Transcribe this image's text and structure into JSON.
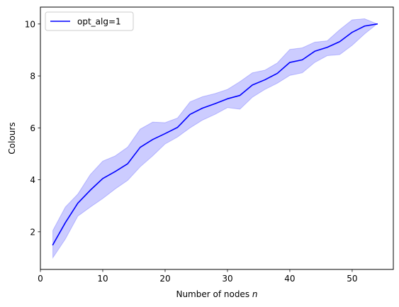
{
  "chart_data": {
    "type": "line",
    "title": "",
    "xlabel": "Number of nodes",
    "xlabel_var": "n",
    "ylabel": "Colours",
    "xlim": [
      0,
      56.6
    ],
    "ylim": [
      0.55,
      10.65
    ],
    "x_ticks": [
      0,
      10,
      20,
      30,
      40,
      50
    ],
    "y_ticks": [
      2,
      4,
      6,
      8,
      10
    ],
    "grid": false,
    "legend_position": "top-left",
    "series": [
      {
        "name": "opt_alg=1",
        "color": "#0000ff",
        "band_color": "#0000ff",
        "x": [
          2,
          4,
          6,
          8,
          10,
          12,
          14,
          16,
          18,
          20,
          22,
          24,
          26,
          28,
          30,
          32,
          34,
          36,
          38,
          40,
          42,
          44,
          46,
          48,
          50,
          52,
          54
        ],
        "mean": [
          1.5,
          2.35,
          3.1,
          3.6,
          4.05,
          4.32,
          4.62,
          5.25,
          5.55,
          5.78,
          6.02,
          6.52,
          6.76,
          6.93,
          7.12,
          7.25,
          7.65,
          7.85,
          8.1,
          8.52,
          8.62,
          8.95,
          9.1,
          9.32,
          9.68,
          9.92,
          10.0
        ],
        "lower": [
          1.0,
          1.72,
          2.6,
          2.95,
          3.28,
          3.65,
          3.98,
          4.5,
          4.92,
          5.38,
          5.65,
          6.0,
          6.3,
          6.52,
          6.78,
          6.72,
          7.18,
          7.48,
          7.72,
          8.02,
          8.12,
          8.52,
          8.78,
          8.82,
          9.18,
          9.62,
          10.0
        ],
        "upper": [
          2.05,
          2.95,
          3.45,
          4.2,
          4.72,
          4.92,
          5.26,
          5.95,
          6.22,
          6.2,
          6.38,
          7.0,
          7.2,
          7.32,
          7.48,
          7.78,
          8.12,
          8.22,
          8.5,
          9.02,
          9.08,
          9.3,
          9.35,
          9.78,
          10.16,
          10.2,
          10.0
        ]
      }
    ]
  }
}
